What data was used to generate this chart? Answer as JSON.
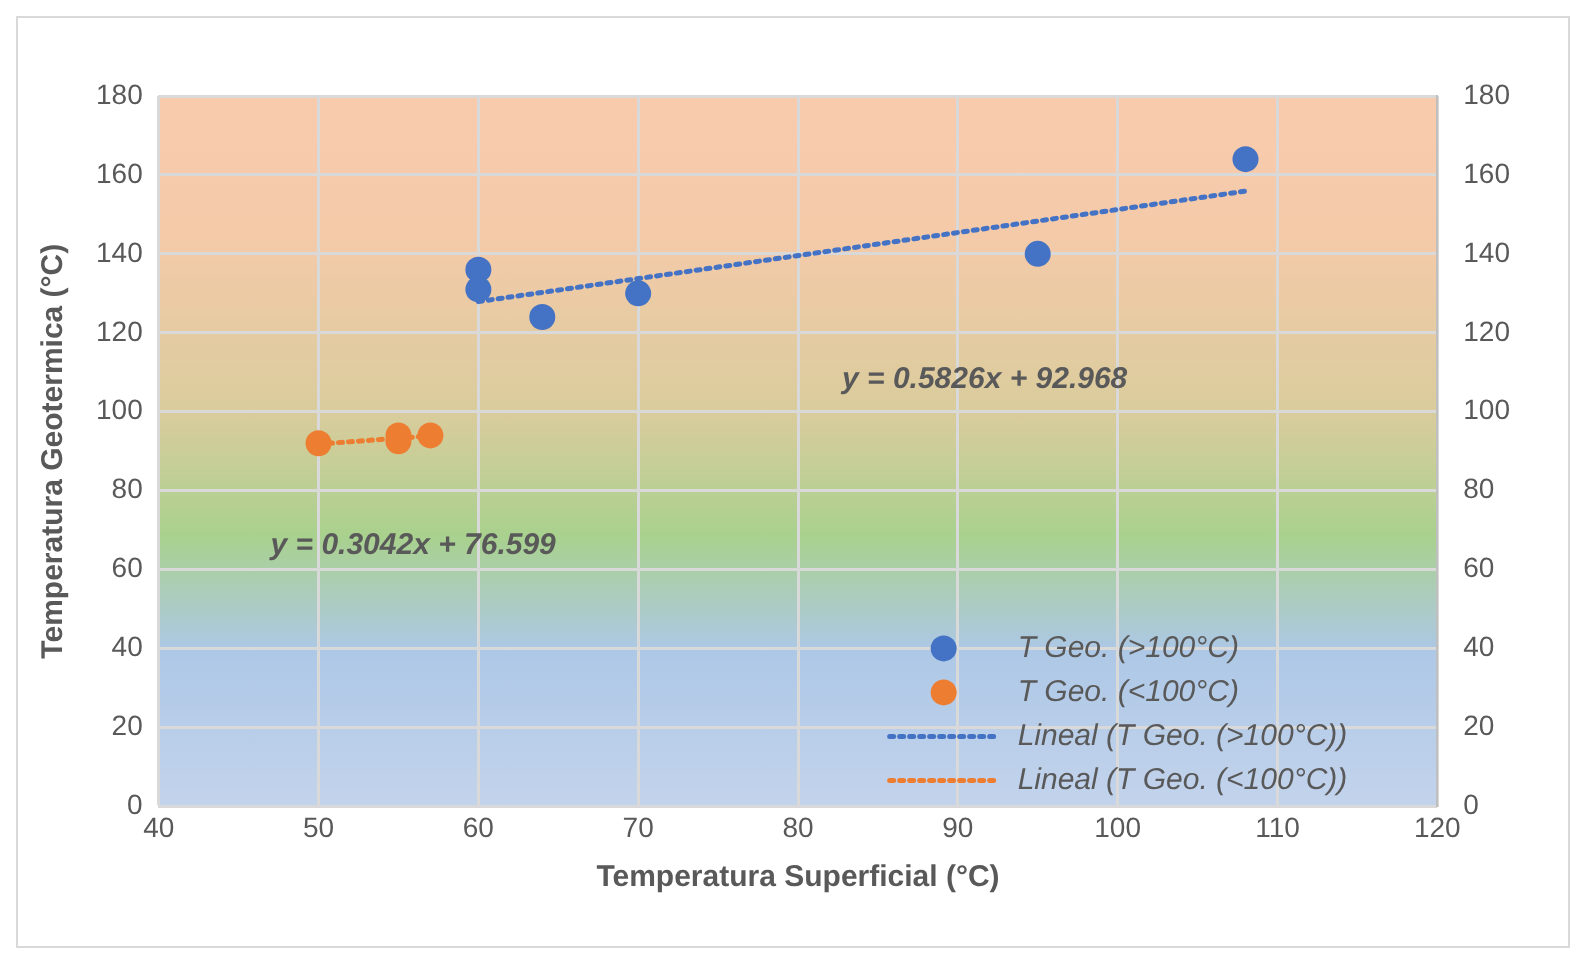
{
  "chart_data": {
    "type": "scatter",
    "xlabel": "Temperatura Superficial (°C)",
    "ylabel": "Temperatura Geotermica (°C)",
    "xlim": [
      40,
      120
    ],
    "xticks": [
      40,
      50,
      60,
      70,
      80,
      90,
      100,
      110,
      120
    ],
    "ylim": [
      0,
      180
    ],
    "yticks": [
      0,
      20,
      40,
      60,
      80,
      100,
      120,
      140,
      160,
      180
    ],
    "y2lim": [
      0,
      180
    ],
    "y2ticks": [
      0,
      20,
      40,
      60,
      80,
      100,
      120,
      140,
      160,
      180
    ],
    "grid": true,
    "legend": "bottom right",
    "marker": "circle",
    "series": [
      {
        "name": "T Geo. (>100°C)",
        "color": "#4472c4",
        "x": [
          60,
          60,
          64,
          70,
          95,
          108
        ],
        "values": [
          136,
          131,
          124,
          130,
          140,
          164
        ]
      },
      {
        "name": "T Geo. (<100°C)",
        "color": "#ed7d31",
        "x": [
          50,
          55,
          55,
          57
        ],
        "values": [
          92,
          94,
          92.5,
          94
        ]
      },
      {
        "name": "Lineal (T Geo. (>100°C))",
        "type": "line",
        "marker": "none",
        "line_style": "dotted",
        "color": "#4472c4",
        "x": [
          60,
          108
        ],
        "values": [
          127.9,
          155.9
        ]
      },
      {
        "name": "Lineal (T Geo. (<100°C))",
        "type": "line",
        "marker": "none",
        "line_style": "dotted",
        "color": "#ed7d31",
        "x": [
          50,
          57
        ],
        "values": [
          91.8,
          93.9
        ]
      }
    ],
    "annotations": [
      "y = 0.5826x + 92.968",
      "y = 0.3042x + 76.599"
    ]
  }
}
